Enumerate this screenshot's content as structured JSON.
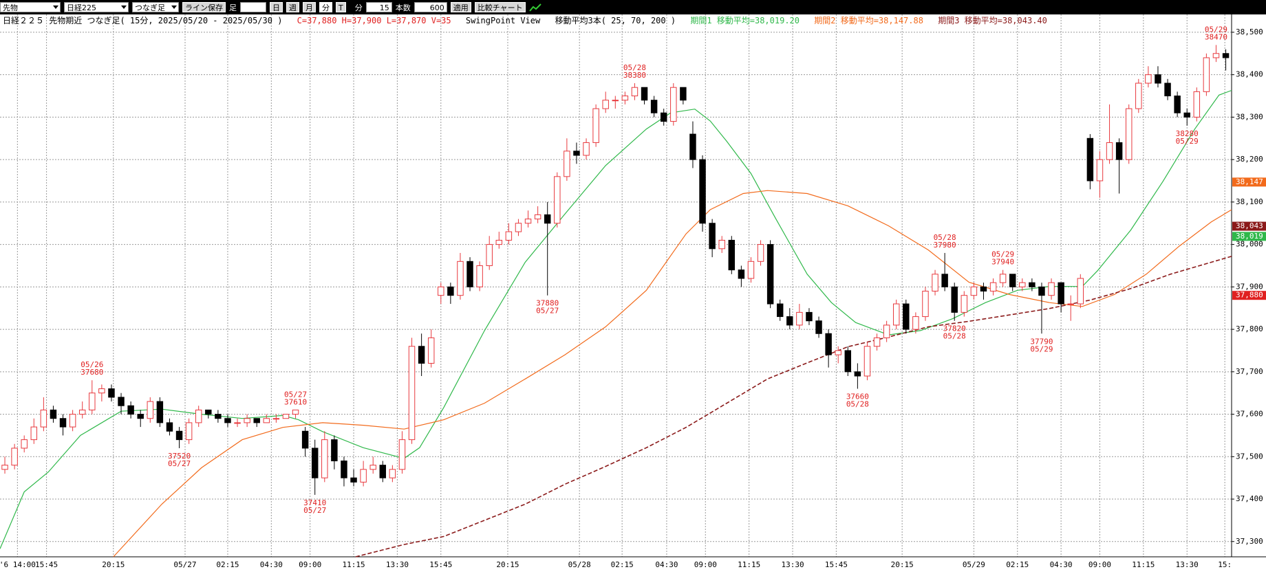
{
  "toolbar": {
    "market": "先物",
    "index": "日経225",
    "chart_kind": "つなぎ足",
    "save": "ライン保存",
    "foot": "足",
    "periods": [
      "日",
      "週",
      "月",
      "分",
      "T"
    ],
    "unit": "分",
    "interval": 15,
    "count_label": "本数",
    "count": 600,
    "apply": "適用",
    "compare": "比較チャート"
  },
  "chart_data": {
    "type": "candlestick",
    "title": "日経２２５ 先物期近 つなぎ足( 15分, 2025/05/20 - 2025/05/30 )",
    "ohlcv": "C=37,880 H=37,900 L=37,870 V=35",
    "indicator": "SwingPoint View",
    "ma_title": "移動平均3本( 25, 70, 200 )",
    "up_color": "#e8383d",
    "down_color": "#000000",
    "grid": true,
    "xlim": [
      -0.5,
      126.6
    ],
    "ylim": [
      37264,
      38542
    ],
    "yticks": [
      {
        "value": 37300,
        "label": "37,300"
      },
      {
        "value": 37400,
        "label": "37,400"
      },
      {
        "value": 37500,
        "label": "37,500"
      },
      {
        "value": 37600,
        "label": "37,600"
      },
      {
        "value": 37700,
        "label": "37,700"
      },
      {
        "value": 37800,
        "label": "37,800"
      },
      {
        "value": 37900,
        "label": "37,900"
      },
      {
        "value": 38000,
        "label": "38,000"
      },
      {
        "value": 38100,
        "label": "38,100"
      },
      {
        "value": 38200,
        "label": "38,200"
      },
      {
        "value": 38300,
        "label": "38,300"
      },
      {
        "value": 38400,
        "label": "38,400"
      },
      {
        "value": 38500,
        "label": "38,500"
      }
    ],
    "xticks": [
      {
        "value": 1.3,
        "label": "'6 14:00"
      },
      {
        "value": 4.3,
        "label": "15:45"
      },
      {
        "value": 11.2,
        "label": "20:15"
      },
      {
        "value": 18.6,
        "label": "05/27"
      },
      {
        "value": 23,
        "label": "02:15"
      },
      {
        "value": 27.5,
        "label": "04:30"
      },
      {
        "value": 31.5,
        "label": "09:00"
      },
      {
        "value": 36,
        "label": "11:15"
      },
      {
        "value": 40.5,
        "label": "13:30"
      },
      {
        "value": 45,
        "label": "15:45"
      },
      {
        "value": 51.9,
        "label": "20:15"
      },
      {
        "value": 59.3,
        "label": "05/28"
      },
      {
        "value": 63.7,
        "label": "02:15"
      },
      {
        "value": 68.3,
        "label": "04:30"
      },
      {
        "value": 72.3,
        "label": "09:00"
      },
      {
        "value": 76.8,
        "label": "11:15"
      },
      {
        "value": 81.3,
        "label": "13:30"
      },
      {
        "value": 85.8,
        "label": "15:45"
      },
      {
        "value": 92.6,
        "label": "20:15"
      },
      {
        "value": 100,
        "label": "05/29"
      },
      {
        "value": 104.5,
        "label": "02:15"
      },
      {
        "value": 109,
        "label": "04:30"
      },
      {
        "value": 113,
        "label": "09:00"
      },
      {
        "value": 117.5,
        "label": "11:15"
      },
      {
        "value": 122,
        "label": "13:30"
      },
      {
        "value": 125.9,
        "label": "15:"
      }
    ],
    "candles": [
      [
        37470,
        37500,
        37460,
        37480
      ],
      [
        37480,
        37530,
        37470,
        37520
      ],
      [
        37520,
        37550,
        37510,
        37540
      ],
      [
        37540,
        37590,
        37530,
        37570
      ],
      [
        37570,
        37640,
        37560,
        37610
      ],
      [
        37610,
        37620,
        37580,
        37590
      ],
      [
        37590,
        37600,
        37550,
        37570
      ],
      [
        37570,
        37610,
        37560,
        37600
      ],
      [
        37600,
        37630,
        37590,
        37610
      ],
      [
        37610,
        37680,
        37600,
        37650
      ],
      [
        37650,
        37670,
        37630,
        37660
      ],
      [
        37660,
        37670,
        37630,
        37640
      ],
      [
        37640,
        37650,
        37600,
        37620
      ],
      [
        37620,
        37630,
        37590,
        37600
      ],
      [
        37600,
        37610,
        37570,
        37590
      ],
      [
        37590,
        37640,
        37580,
        37630
      ],
      [
        37630,
        37640,
        37570,
        37580
      ],
      [
        37580,
        37590,
        37550,
        37560
      ],
      [
        37560,
        37570,
        37520,
        37540
      ],
      [
        37540,
        37590,
        37530,
        37580
      ],
      [
        37580,
        37620,
        37570,
        37610
      ],
      [
        37610,
        37610,
        37590,
        37600
      ],
      [
        37600,
        37610,
        37580,
        37590
      ],
      [
        37590,
        37600,
        37570,
        37580
      ],
      [
        37580,
        37590,
        37570,
        37580
      ],
      [
        37580,
        37600,
        37570,
        37590
      ],
      [
        37590,
        37590,
        37570,
        37580
      ],
      [
        37580,
        37600,
        37580,
        37590
      ],
      [
        37590,
        37600,
        37580,
        37590
      ],
      [
        37590,
        37600,
        37590,
        37600
      ],
      [
        37600,
        37610,
        37590,
        37610
      ],
      [
        37560,
        37570,
        37500,
        37520
      ],
      [
        37520,
        37540,
        37410,
        37450
      ],
      [
        37450,
        37560,
        37440,
        37540
      ],
      [
        37540,
        37550,
        37470,
        37490
      ],
      [
        37490,
        37500,
        37430,
        37450
      ],
      [
        37450,
        37470,
        37430,
        37440
      ],
      [
        37440,
        37490,
        37430,
        37470
      ],
      [
        37470,
        37500,
        37460,
        37480
      ],
      [
        37480,
        37490,
        37440,
        37450
      ],
      [
        37450,
        37480,
        37440,
        37470
      ],
      [
        37470,
        37560,
        37460,
        37540
      ],
      [
        37540,
        37780,
        37530,
        37760
      ],
      [
        37760,
        37790,
        37690,
        37720
      ],
      [
        37720,
        37800,
        37710,
        37780
      ],
      [
        37880,
        37910,
        37860,
        37900
      ],
      [
        37900,
        37910,
        37860,
        37880
      ],
      [
        37880,
        37980,
        37870,
        37960
      ],
      [
        37960,
        37970,
        37890,
        37900
      ],
      [
        37900,
        37960,
        37890,
        37950
      ],
      [
        37950,
        38020,
        37940,
        38000
      ],
      [
        38000,
        38030,
        37990,
        38010
      ],
      [
        38010,
        38050,
        38000,
        38030
      ],
      [
        38030,
        38060,
        38020,
        38050
      ],
      [
        38050,
        38080,
        38040,
        38060
      ],
      [
        38060,
        38090,
        38050,
        38070
      ],
      [
        38070,
        38100,
        37880,
        38050
      ],
      [
        38050,
        38170,
        38040,
        38160
      ],
      [
        38160,
        38250,
        38150,
        38220
      ],
      [
        38220,
        38240,
        38190,
        38210
      ],
      [
        38210,
        38250,
        38200,
        38240
      ],
      [
        38240,
        38330,
        38230,
        38320
      ],
      [
        38320,
        38360,
        38310,
        38340
      ],
      [
        38340,
        38350,
        38320,
        38340
      ],
      [
        38340,
        38360,
        38330,
        38350
      ],
      [
        38350,
        38380,
        38340,
        38370
      ],
      [
        38370,
        38370,
        38330,
        38340
      ],
      [
        38340,
        38350,
        38300,
        38310
      ],
      [
        38310,
        38320,
        38280,
        38290
      ],
      [
        38290,
        38380,
        38280,
        38370
      ],
      [
        38370,
        38370,
        38330,
        38340
      ],
      [
        38260,
        38290,
        38180,
        38200
      ],
      [
        38200,
        38210,
        38030,
        38050
      ],
      [
        38050,
        38060,
        37970,
        37990
      ],
      [
        37990,
        38020,
        37980,
        38010
      ],
      [
        38010,
        38020,
        37930,
        37940
      ],
      [
        37940,
        37950,
        37900,
        37920
      ],
      [
        37920,
        37970,
        37910,
        37960
      ],
      [
        37960,
        38010,
        37950,
        38000
      ],
      [
        38000,
        38010,
        37850,
        37860
      ],
      [
        37860,
        37870,
        37820,
        37830
      ],
      [
        37830,
        37850,
        37800,
        37810
      ],
      [
        37810,
        37860,
        37800,
        37840
      ],
      [
        37840,
        37850,
        37810,
        37820
      ],
      [
        37820,
        37830,
        37780,
        37790
      ],
      [
        37790,
        37800,
        37710,
        37740
      ],
      [
        37740,
        37760,
        37720,
        37750
      ],
      [
        37750,
        37760,
        37690,
        37700
      ],
      [
        37700,
        37720,
        37660,
        37690
      ],
      [
        37690,
        37770,
        37680,
        37760
      ],
      [
        37760,
        37790,
        37750,
        37780
      ],
      [
        37780,
        37820,
        37770,
        37810
      ],
      [
        37810,
        37870,
        37800,
        37860
      ],
      [
        37860,
        37870,
        37790,
        37800
      ],
      [
        37800,
        37840,
        37790,
        37830
      ],
      [
        37830,
        37900,
        37820,
        37890
      ],
      [
        37890,
        37940,
        37880,
        37930
      ],
      [
        37930,
        37980,
        37890,
        37900
      ],
      [
        37900,
        37910,
        37820,
        37840
      ],
      [
        37840,
        37890,
        37830,
        37880
      ],
      [
        37880,
        37910,
        37870,
        37900
      ],
      [
        37900,
        37910,
        37870,
        37890
      ],
      [
        37890,
        37920,
        37880,
        37910
      ],
      [
        37910,
        37940,
        37900,
        37930
      ],
      [
        37930,
        37930,
        37890,
        37900
      ],
      [
        37900,
        37920,
        37890,
        37910
      ],
      [
        37910,
        37920,
        37890,
        37900
      ],
      [
        37900,
        37910,
        37790,
        37880
      ],
      [
        37880,
        37920,
        37870,
        37910
      ],
      [
        37910,
        37910,
        37840,
        37860
      ],
      [
        37860,
        37880,
        37820,
        37860
      ],
      [
        37860,
        37930,
        37850,
        37920
      ],
      [
        38250,
        38260,
        38130,
        38150
      ],
      [
        38150,
        38220,
        38110,
        38200
      ],
      [
        38200,
        38330,
        38190,
        38240
      ],
      [
        38240,
        38250,
        38120,
        38200
      ],
      [
        38200,
        38330,
        38190,
        38320
      ],
      [
        38320,
        38390,
        38310,
        38380
      ],
      [
        38380,
        38420,
        38370,
        38400
      ],
      [
        38400,
        38420,
        38370,
        38380
      ],
      [
        38380,
        38390,
        38340,
        38350
      ],
      [
        38350,
        38360,
        38300,
        38310
      ],
      [
        38310,
        38320,
        38280,
        38300
      ],
      [
        38300,
        38370,
        38290,
        38360
      ],
      [
        38360,
        38450,
        38350,
        38440
      ],
      [
        38440,
        38470,
        38430,
        38450
      ],
      [
        38450,
        38460,
        38410,
        38440
      ]
    ],
    "series": [
      {
        "name": "期間1 移動平均=38,019.20",
        "color": "#2fb84a",
        "dashed": false,
        "x": [
          -0.5,
          2,
          4.5,
          7.8,
          12,
          16.2,
          20.3,
          24.5,
          28.7,
          30.3,
          32.8,
          37,
          41.2,
          42.8,
          45.3,
          49.5,
          53.7,
          57.8,
          62,
          66.2,
          68.7,
          71.2,
          72.8,
          74.5,
          77,
          79.5,
          82.8,
          85.3,
          87.8,
          91.2,
          94.5,
          97.8,
          101.2,
          104.5,
          107.8,
          111.2,
          112.8,
          116.2,
          119.5,
          122.8,
          125.3,
          126.6
        ],
        "values": [
          37283,
          37417,
          37464,
          37550,
          37607,
          37612,
          37600,
          37590,
          37597,
          37587,
          37559,
          37521,
          37496,
          37521,
          37616,
          37797,
          37958,
          38072,
          38186,
          38272,
          38310,
          38319,
          38291,
          38243,
          38167,
          38063,
          37930,
          37863,
          37816,
          37787,
          37797,
          37825,
          37863,
          37892,
          37901,
          37901,
          37939,
          38034,
          38148,
          38272,
          38352,
          38363
        ]
      },
      {
        "name": "期間2 移動平均=38,147.88",
        "color": "#f26a1b",
        "dashed": false,
        "x": [
          11.2,
          16.2,
          20.3,
          24.5,
          28.7,
          32.8,
          37,
          41.2,
          45.3,
          49.5,
          53.7,
          57.8,
          62,
          66.2,
          70.3,
          72.8,
          76.2,
          78.7,
          82.8,
          87,
          91.2,
          95.3,
          99.5,
          103.7,
          107.8,
          111.2,
          114.5,
          117.8,
          121.2,
          124.5,
          126.6
        ],
        "values": [
          37264,
          37388,
          37474,
          37540,
          37569,
          37580,
          37574,
          37565,
          37587,
          37626,
          37683,
          37740,
          37806,
          37892,
          38025,
          38082,
          38120,
          38127,
          38120,
          38091,
          38044,
          37987,
          37911,
          37882,
          37863,
          37854,
          37882,
          37930,
          37996,
          38053,
          38082
        ]
      },
      {
        "name": "期間3 移動平均=38,043.40",
        "color": "#8b1a1a",
        "dashed": true,
        "x": [
          36.2,
          41.2,
          45.3,
          49.5,
          53.7,
          57.8,
          62,
          66.2,
          70.3,
          74.5,
          78.7,
          82.8,
          87,
          91.2,
          95.3,
          99.5,
          103.7,
          107.8,
          112,
          116.2,
          120.3,
          124.5,
          126.6
        ],
        "values": [
          37264,
          37293,
          37312,
          37350,
          37388,
          37435,
          37477,
          37521,
          37569,
          37626,
          37683,
          37721,
          37759,
          37782,
          37806,
          37819,
          37834,
          37849,
          37869,
          37896,
          37930,
          37958,
          37972
        ]
      }
    ],
    "swing_points": [
      {
        "x": 9,
        "date": "05/26",
        "price": 37680,
        "position": "above"
      },
      {
        "x": 18,
        "date": "05/27",
        "price": 37520,
        "position": "below"
      },
      {
        "x": 30,
        "date": "05/27",
        "price": 37610,
        "position": "above"
      },
      {
        "x": 32,
        "date": "05/27",
        "price": 37410,
        "position": "below"
      },
      {
        "x": 56,
        "date": "05/27",
        "price": 37880,
        "position": "below"
      },
      {
        "x": 65,
        "date": "05/28",
        "price": 38380,
        "position": "above"
      },
      {
        "x": 88,
        "date": "05/28",
        "price": 37660,
        "position": "below"
      },
      {
        "x": 97,
        "date": "05/28",
        "price": 37980,
        "position": "above"
      },
      {
        "x": 98,
        "date": "05/28",
        "price": 37820,
        "position": "below"
      },
      {
        "x": 103,
        "date": "05/29",
        "price": 37940,
        "position": "above"
      },
      {
        "x": 107,
        "date": "05/29",
        "price": 37790,
        "position": "below"
      },
      {
        "x": 122,
        "date": "05/29",
        "price": 38280,
        "position": "below"
      },
      {
        "x": 125,
        "date": "05/29",
        "price": 38470,
        "position": "above"
      }
    ],
    "price_markers": [
      {
        "value": 38147,
        "label": "38,147",
        "color": "#f26a1b"
      },
      {
        "value": 38043,
        "label": "38,043",
        "color": "#8b1a1a"
      },
      {
        "value": 38019,
        "label": "38,019",
        "color": "#2fb84a"
      },
      {
        "value": 37880,
        "label": "37,880",
        "color": "#e02020"
      }
    ]
  }
}
